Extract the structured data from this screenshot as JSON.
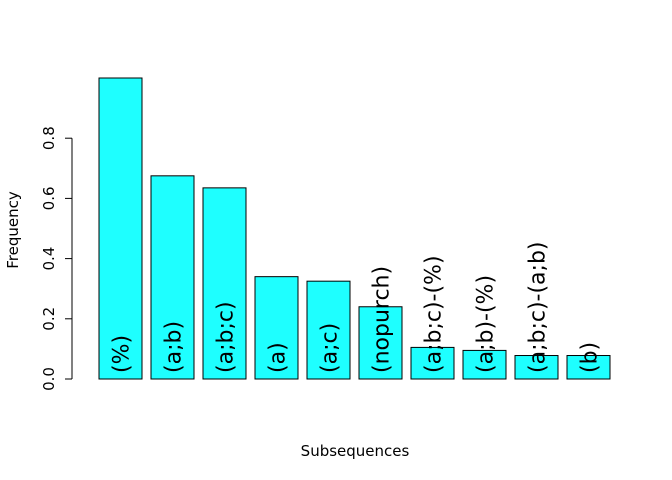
{
  "chart_data": {
    "type": "bar",
    "title": "",
    "xlabel": "Subsequences",
    "ylabel": "Frequency",
    "ylim": [
      0,
      1.0
    ],
    "yticks": [
      "0.0",
      "0.2",
      "0.4",
      "0.6",
      "0.8"
    ],
    "ytick_values": [
      0,
      0.2,
      0.4,
      0.6,
      0.8
    ],
    "grid": false,
    "categories": [
      "(%)",
      "(a;b)",
      "(a;b;c)",
      "(a)",
      "(a;c)",
      "(nopurch)",
      "(a;b;c)-(%)",
      "(a;b)-(%)",
      "(a;b;c)-(a;b)",
      "(b)"
    ],
    "values": [
      1.0,
      0.675,
      0.635,
      0.34,
      0.325,
      0.24,
      0.105,
      0.095,
      0.078,
      0.078
    ],
    "bar_color": "#1EFFFF",
    "bar_edge_color": "#000000"
  }
}
